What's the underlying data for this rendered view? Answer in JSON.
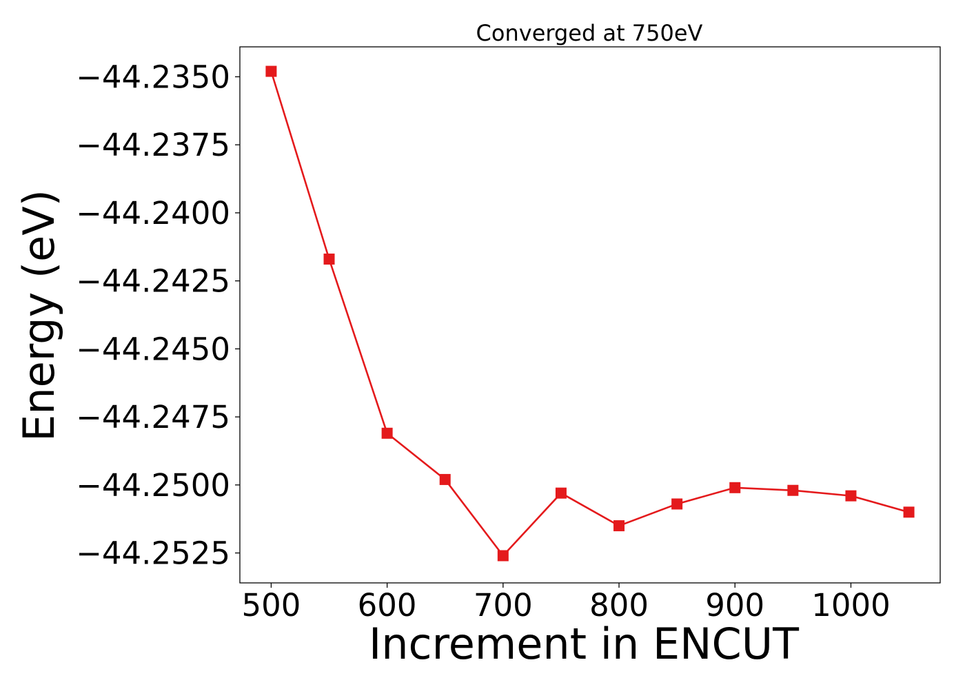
{
  "chart_data": {
    "type": "line",
    "title": "Converged at 750eV",
    "xlabel": "Increment in ENCUT",
    "ylabel": "Energy (eV)",
    "x": [
      500,
      550,
      600,
      650,
      700,
      750,
      800,
      850,
      900,
      950,
      1000,
      1050
    ],
    "series": [
      {
        "color": "#e41a1c",
        "marker": "square",
        "values": [
          -44.2348,
          -44.2417,
          -44.2481,
          -44.2498,
          -44.2526,
          -44.2503,
          -44.2515,
          -44.2507,
          -44.2501,
          -44.2502,
          -44.2504,
          -44.251
        ]
      }
    ],
    "xlim": [
      473,
      1077
    ],
    "ylim": [
      -44.2536,
      -44.2339
    ],
    "xticks": [
      500,
      600,
      700,
      800,
      900,
      1000
    ],
    "xtick_labels": [
      "500",
      "600",
      "700",
      "800",
      "900",
      "1000"
    ],
    "yticks": [
      -44.235,
      -44.2375,
      -44.24,
      -44.2425,
      -44.245,
      -44.2475,
      -44.25,
      -44.2525
    ],
    "ytick_labels": [
      "−44.2350",
      "−44.2375",
      "−44.2400",
      "−44.2425",
      "−44.2450",
      "−44.2475",
      "−44.2500",
      "−44.2525"
    ],
    "grid": false,
    "legend": "none"
  }
}
